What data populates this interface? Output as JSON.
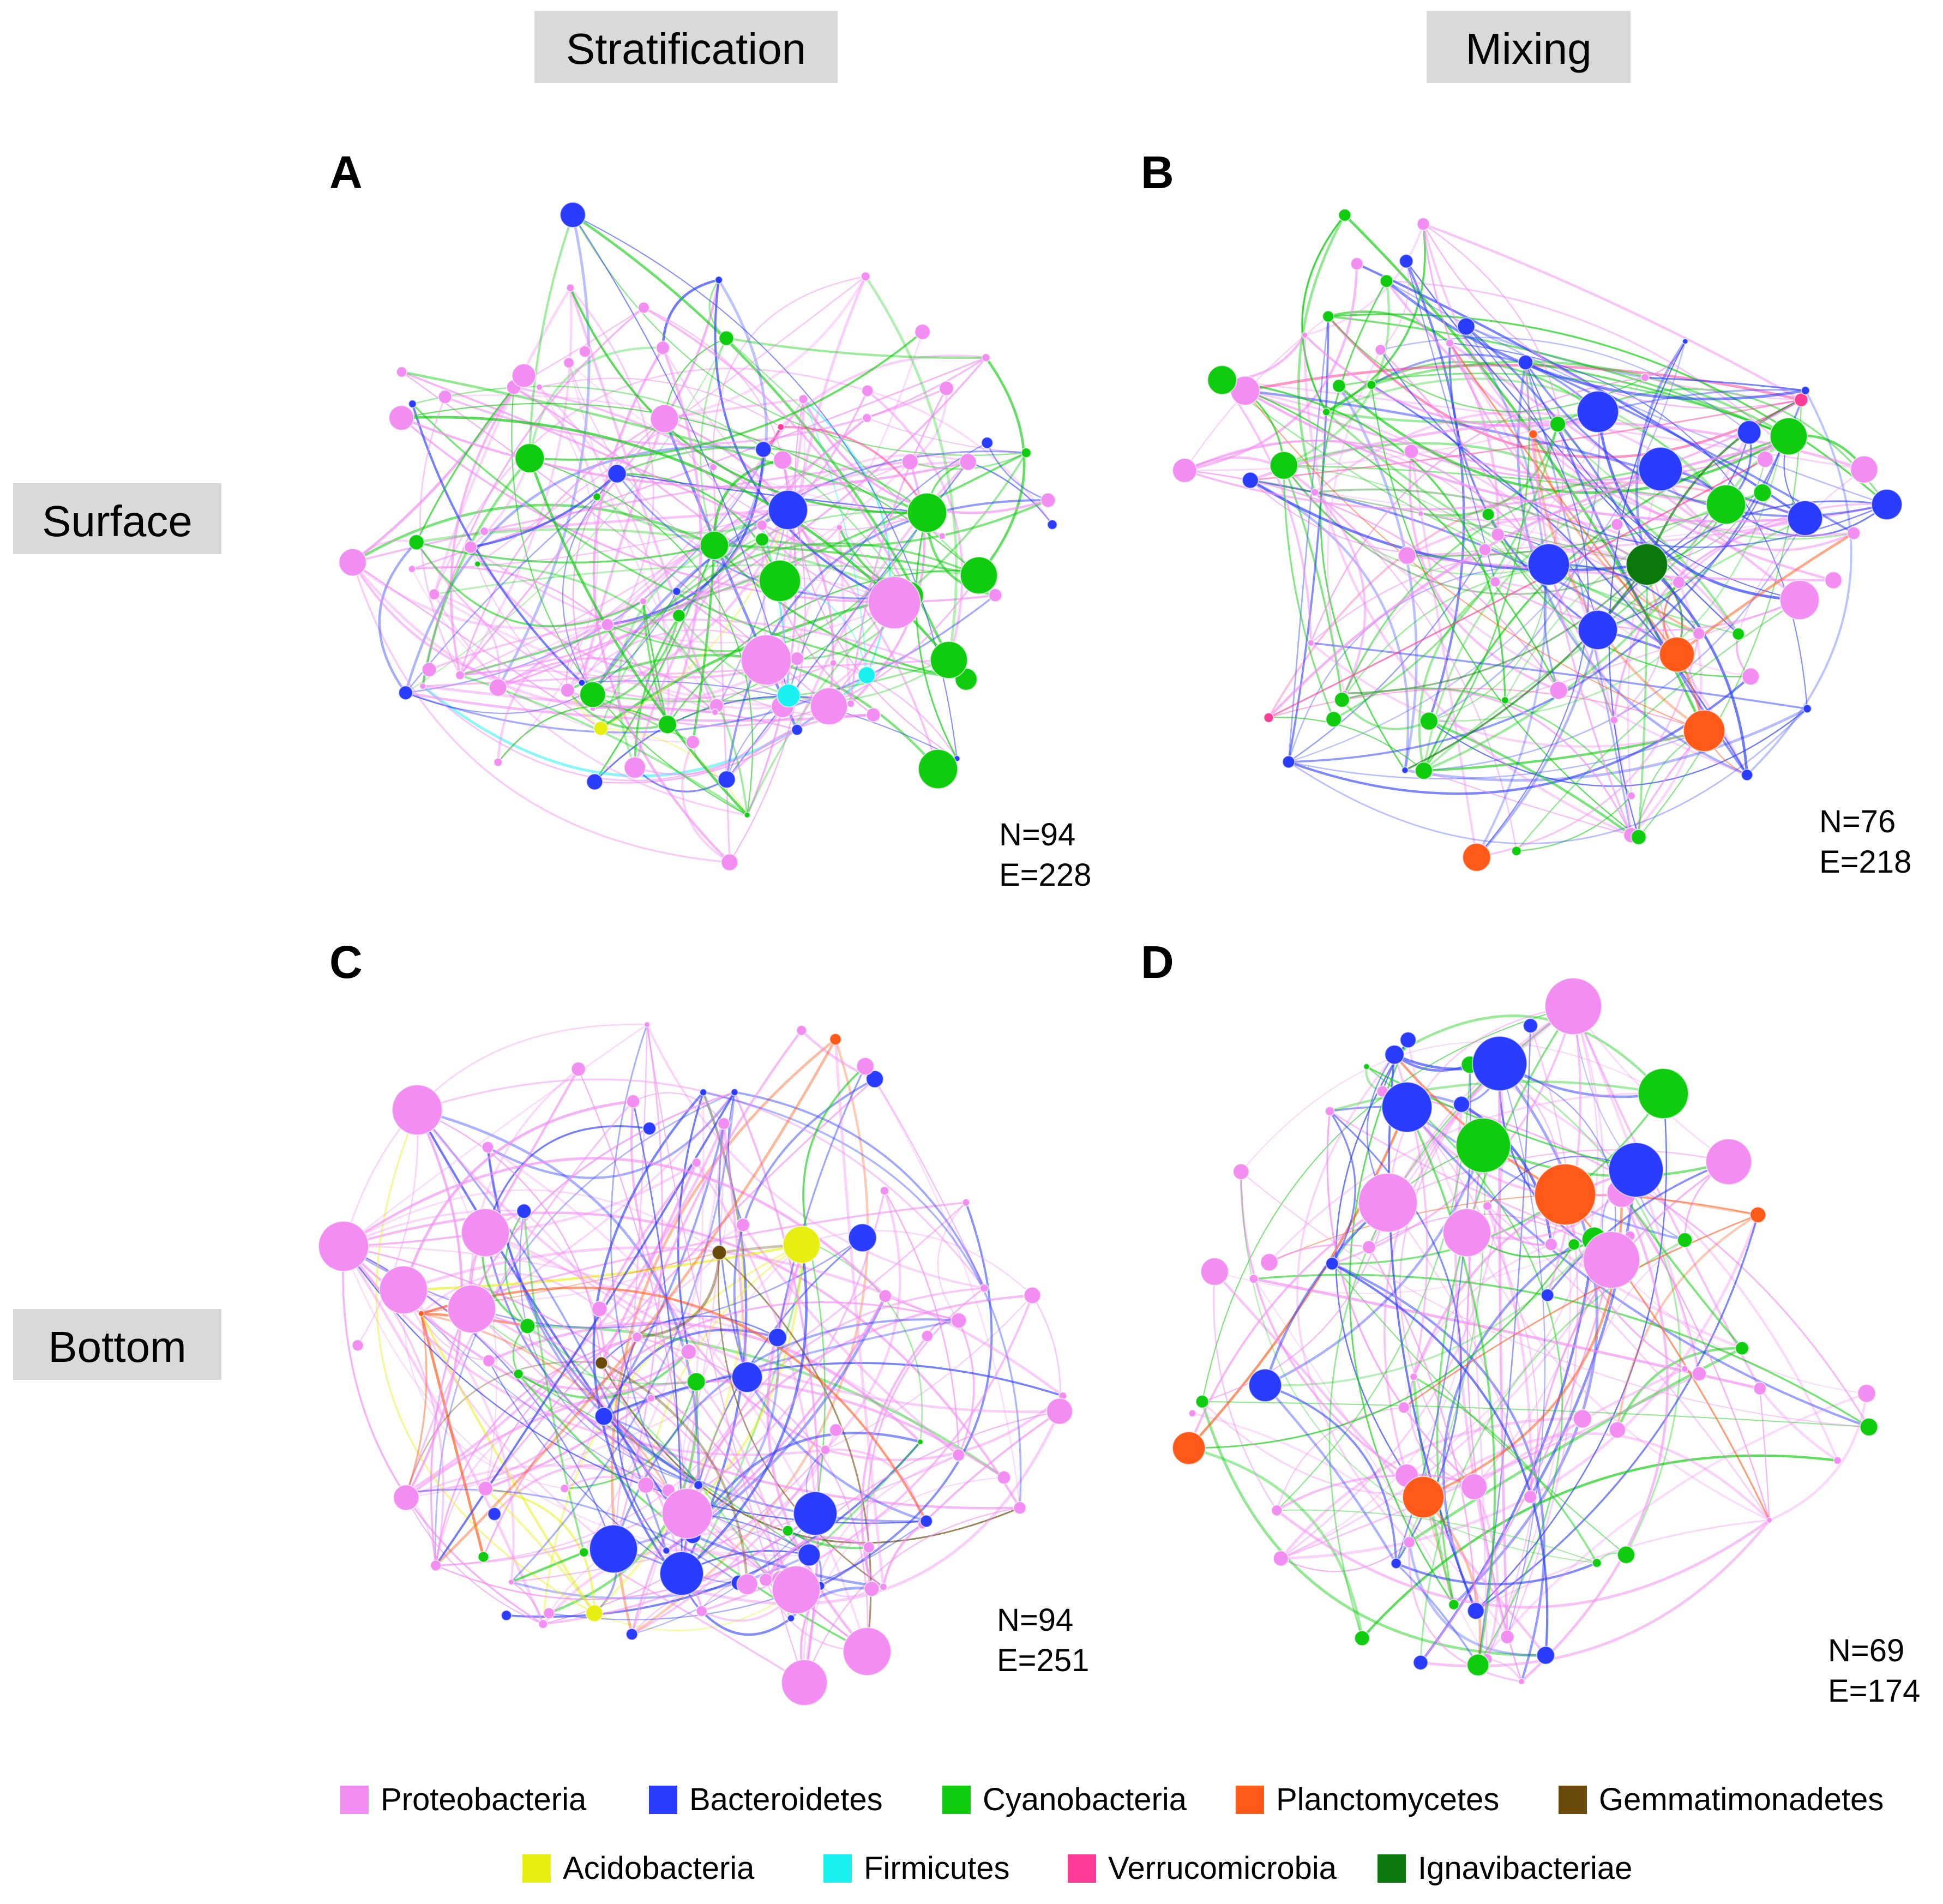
{
  "columns": {
    "left": "Stratification",
    "right": "Mixing"
  },
  "rows": {
    "top": "Surface",
    "bottom": "Bottom"
  },
  "panels": {
    "A": {
      "letter": "A",
      "n_label": "N=94",
      "e_label": "E=228",
      "nodes": 94,
      "edges": 228
    },
    "B": {
      "letter": "B",
      "n_label": "N=76",
      "e_label": "E=218",
      "nodes": 76,
      "edges": 218
    },
    "C": {
      "letter": "C",
      "n_label": "N=94",
      "e_label": "E=251",
      "nodes": 94,
      "edges": 251
    },
    "D": {
      "letter": "D",
      "n_label": "N=69",
      "e_label": "E=174",
      "nodes": 69,
      "edges": 174
    }
  },
  "legend": [
    {
      "label": "Proteobacteria",
      "color": "#f28ef2"
    },
    {
      "label": "Bacteroidetes",
      "color": "#2a3cff"
    },
    {
      "label": "Cyanobacteria",
      "color": "#0fcc0f"
    },
    {
      "label": "Planctomycetes",
      "color": "#ff5a1a"
    },
    {
      "label": "Gemmatimonadetes",
      "color": "#6a4a0a"
    },
    {
      "label": "Acidobacteria",
      "color": "#e6ee12"
    },
    {
      "label": "Firmicutes",
      "color": "#19f0f0"
    },
    {
      "label": "Verrucomicrobia",
      "color": "#ff3c96"
    },
    {
      "label": "Ignavibacteriae",
      "color": "#0a780a"
    }
  ]
}
